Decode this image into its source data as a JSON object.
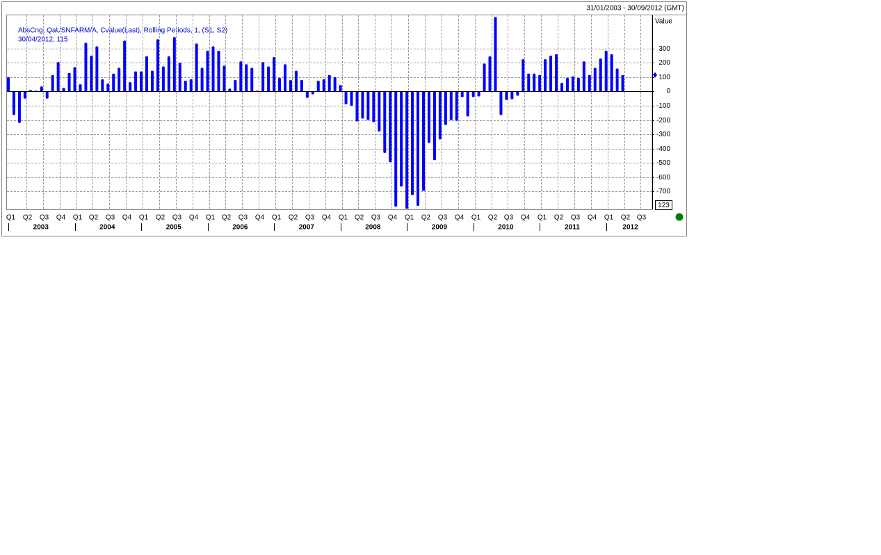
{
  "chart_data": {
    "type": "bar",
    "date_range": "31/01/2003 - 30/09/2012 (GMT)",
    "legend_lines": [
      "AbsCng, QaUSNFARM/A, Cvalue(Last), Rolling Periods, 1, (S1, S2)",
      "30/04/2012, 115"
    ],
    "y_axis_label": "Value",
    "cursor_label": "123",
    "color": "#0000ff",
    "grid": true,
    "categories": [
      "Q1",
      null,
      null,
      "Q2",
      null,
      null,
      "Q3",
      null,
      null,
      "Q4",
      null,
      null,
      "Q1",
      null,
      null,
      "Q2",
      null,
      null,
      "Q3",
      null,
      null,
      "Q4",
      null,
      null,
      "Q1",
      null,
      null,
      "Q2",
      null,
      null,
      "Q3",
      null,
      null,
      "Q4",
      null,
      null,
      "Q1",
      null,
      null,
      "Q2",
      null,
      null,
      "Q3",
      null,
      null,
      "Q4",
      null,
      null,
      "Q1",
      null,
      null,
      "Q2",
      null,
      null,
      "Q3",
      null,
      null,
      "Q4",
      null,
      null,
      "Q1",
      null,
      null,
      "Q2",
      null,
      null,
      "Q3",
      null,
      null,
      "Q4",
      null,
      null,
      "Q1",
      null,
      null,
      "Q2",
      null,
      null,
      "Q3",
      null,
      null,
      "Q4",
      null,
      null,
      "Q1",
      null,
      null,
      "Q2",
      null,
      null,
      "Q3",
      null,
      null,
      "Q4",
      null,
      null,
      "Q1",
      null,
      null,
      "Q2",
      null,
      null,
      "Q3",
      null,
      null,
      "Q4",
      null,
      null,
      "Q1",
      null,
      null,
      "Q2",
      null,
      null,
      "Q3",
      null,
      null
    ],
    "year_labels": [
      "2003",
      "2004",
      "2005",
      "2006",
      "2007",
      "2008",
      "2009",
      "2010",
      "2011",
      "2012"
    ],
    "values": [
      100,
      -165,
      -220,
      -50,
      10,
      5,
      35,
      -50,
      115,
      205,
      25,
      130,
      170,
      50,
      340,
      250,
      315,
      85,
      55,
      125,
      165,
      355,
      65,
      140,
      140,
      245,
      145,
      365,
      175,
      245,
      380,
      200,
      75,
      85,
      335,
      165,
      285,
      315,
      285,
      180,
      20,
      80,
      210,
      190,
      165,
      5,
      205,
      175,
      240,
      95,
      190,
      80,
      145,
      80,
      -45,
      -20,
      75,
      85,
      115,
      100,
      45,
      -90,
      -100,
      -210,
      -190,
      -200,
      -215,
      -280,
      -430,
      -495,
      -805,
      -665,
      -820,
      -725,
      -800,
      -695,
      -360,
      -480,
      -335,
      -235,
      -200,
      -205,
      -40,
      -175,
      -40,
      -35,
      195,
      245,
      520,
      -165,
      -60,
      -55,
      -30,
      225,
      125,
      125,
      115,
      225,
      250,
      260,
      60,
      95,
      105,
      95,
      210,
      115,
      165,
      230,
      285,
      260,
      160,
      115,
      null,
      null,
      null,
      null,
      null
    ],
    "ylim": [
      -824,
      532
    ],
    "yticks": [
      -700,
      -600,
      -500,
      -400,
      -300,
      -200,
      -100,
      0,
      100,
      200,
      300
    ]
  }
}
